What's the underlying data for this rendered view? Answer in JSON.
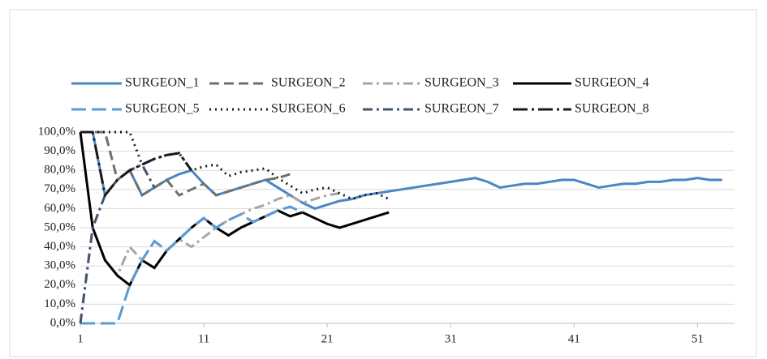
{
  "chart_data": {
    "type": "line",
    "xlim": [
      1,
      54
    ],
    "xticks": [
      1,
      11,
      21,
      31,
      41,
      51
    ],
    "ylim": [
      0,
      100
    ],
    "yticks": [
      {
        "value": 0,
        "label": "0,0%"
      },
      {
        "value": 10,
        "label": "10,0%"
      },
      {
        "value": 20,
        "label": "20,0%"
      },
      {
        "value": 30,
        "label": "30,0%"
      },
      {
        "value": 40,
        "label": "40,0%"
      },
      {
        "value": 50,
        "label": "50,0%"
      },
      {
        "value": 60,
        "label": "60,0%"
      },
      {
        "value": 70,
        "label": "70,0%"
      },
      {
        "value": 80,
        "label": "80,0%"
      },
      {
        "value": 90,
        "label": "90,0%"
      },
      {
        "value": 100,
        "label": "100,0%"
      }
    ],
    "grid": true,
    "legend": "top",
    "series": [
      {
        "name": "SURGEON_1",
        "color": "#4a86c5",
        "dash": "solid",
        "x": [
          1,
          2,
          3,
          4,
          5,
          6,
          7,
          8,
          9,
          10,
          11,
          12,
          13,
          14,
          15,
          16,
          17,
          18,
          19,
          20,
          21,
          22,
          23,
          24,
          25,
          26,
          27,
          28,
          29,
          30,
          31,
          32,
          33,
          34,
          35,
          36,
          37,
          38,
          39,
          40,
          41,
          42,
          43,
          44,
          45,
          46,
          47,
          48,
          49,
          50,
          51,
          52,
          53
        ],
        "values": [
          100,
          100,
          67,
          75,
          80,
          67,
          71,
          75,
          78,
          80,
          73,
          67,
          69,
          71,
          73,
          75,
          71,
          67,
          63,
          60,
          62,
          64,
          65,
          67,
          68,
          69,
          70,
          71,
          72,
          73,
          74,
          75,
          76,
          74,
          71,
          72,
          73,
          73,
          74,
          75,
          75,
          73,
          71,
          72,
          73,
          73,
          74,
          74,
          75,
          75,
          76,
          75,
          75
        ]
      },
      {
        "name": "SURGEON_2",
        "color": "#6f6f6f",
        "dash": "dash",
        "x": [
          1,
          2,
          3,
          4,
          5,
          6,
          7,
          8,
          9,
          10,
          11,
          12,
          13,
          14,
          15,
          16,
          17,
          18
        ],
        "values": [
          100,
          100,
          100,
          75,
          80,
          67,
          71,
          75,
          67,
          70,
          73,
          67,
          69,
          71,
          73,
          75,
          76,
          78
        ]
      },
      {
        "name": "SURGEON_3",
        "color": "#a6a6a6",
        "dash": "dashdot",
        "x": [
          1,
          2,
          3,
          4,
          5,
          6,
          7,
          8,
          9,
          10,
          11,
          12,
          13,
          14,
          15,
          16,
          17,
          18,
          19,
          20,
          21,
          22
        ],
        "values": [
          0,
          50,
          33,
          25,
          40,
          33,
          43,
          38,
          44,
          40,
          45,
          50,
          54,
          57,
          60,
          62,
          65,
          67,
          63,
          65,
          67,
          68
        ]
      },
      {
        "name": "SURGEON_4",
        "color": "#000000",
        "dash": "solid",
        "x": [
          1,
          2,
          3,
          4,
          5,
          6,
          7,
          8,
          9,
          10,
          11,
          12,
          13,
          14,
          15,
          16,
          17,
          18,
          19,
          20,
          21,
          22,
          23,
          24,
          25,
          26
        ],
        "values": [
          100,
          50,
          33,
          25,
          20,
          33,
          29,
          38,
          44,
          50,
          55,
          50,
          46,
          50,
          53,
          56,
          59,
          56,
          58,
          55,
          52,
          50,
          52,
          54,
          56,
          58
        ]
      },
      {
        "name": "SURGEON_5",
        "color": "#5b9bd5",
        "dash": "longdash",
        "x": [
          1,
          2,
          3,
          4,
          5,
          6,
          7,
          8,
          9,
          10,
          11,
          12,
          13,
          14,
          15,
          16,
          17,
          18,
          19
        ],
        "values": [
          0,
          0,
          0,
          0,
          20,
          33,
          43,
          38,
          44,
          50,
          55,
          50,
          54,
          57,
          53,
          56,
          59,
          61,
          58
        ]
      },
      {
        "name": "SURGEON_6",
        "color": "#1a1a1a",
        "dash": "dot",
        "x": [
          1,
          2,
          3,
          4,
          5,
          6,
          7,
          8,
          9,
          10,
          11,
          12,
          13,
          14,
          15,
          16,
          17,
          18,
          19,
          20,
          21,
          22,
          23,
          24,
          25,
          26
        ],
        "values": [
          100,
          100,
          100,
          100,
          100,
          83,
          86,
          88,
          89,
          80,
          82,
          83,
          77,
          79,
          80,
          81,
          76,
          72,
          68,
          70,
          71,
          68,
          65,
          67,
          68,
          65
        ]
      },
      {
        "name": "SURGEON_7",
        "color": "#44546a",
        "dash": "dashdot",
        "x": [
          1,
          2,
          3,
          4,
          5,
          6,
          7
        ],
        "values": [
          0,
          50,
          67,
          75,
          80,
          83,
          71
        ]
      },
      {
        "name": "SURGEON_8",
        "color": "#1a1a1a",
        "dash": "longdashdot",
        "x": [
          1,
          2,
          3,
          4,
          5,
          6,
          7,
          8,
          9,
          10
        ],
        "values": [
          100,
          100,
          67,
          75,
          80,
          83,
          86,
          88,
          89,
          80
        ]
      }
    ]
  }
}
